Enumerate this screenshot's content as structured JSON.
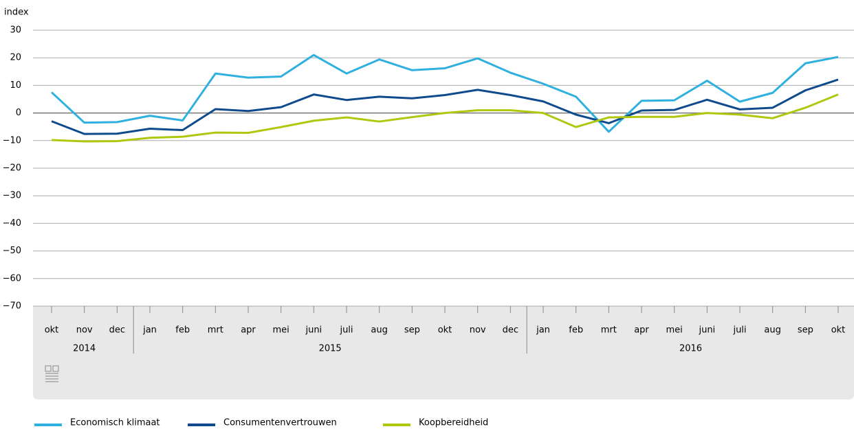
{
  "chart_data": {
    "type": "line",
    "y_label": "index",
    "categories": [
      "okt",
      "nov",
      "dec",
      "jan",
      "feb",
      "mrt",
      "apr",
      "mei",
      "juni",
      "juli",
      "aug",
      "sep",
      "okt",
      "nov",
      "dec",
      "jan",
      "feb",
      "mrt",
      "apr",
      "mei",
      "juni",
      "juli",
      "aug",
      "sep",
      "okt"
    ],
    "category_years": [
      "2014",
      "2014",
      "2014",
      "2015",
      "2015",
      "2015",
      "2015",
      "2015",
      "2015",
      "2015",
      "2015",
      "2015",
      "2015",
      "2015",
      "2015",
      "2016",
      "2016",
      "2016",
      "2016",
      "2016",
      "2016",
      "2016",
      "2016",
      "2016",
      "2016"
    ],
    "series": [
      {
        "name": "Economisch klimaat",
        "color": "#2fb0de",
        "values": [
          7.5,
          -3.5,
          -3.3,
          -1,
          -2.7,
          14.3,
          12.8,
          13.2,
          21,
          14.3,
          19.4,
          15.5,
          16.2,
          19.8,
          14.6,
          10.6,
          5.9,
          -6.8,
          4.4,
          4.6,
          11.7,
          4.1,
          7.3,
          18,
          20.3
        ]
      },
      {
        "name": "Consumentenvertrouwen",
        "color": "#0f4a8d",
        "values": [
          -3,
          -7.6,
          -7.5,
          -5.7,
          -6.2,
          1.4,
          0.7,
          2.1,
          6.7,
          4.7,
          5.9,
          5.3,
          6.5,
          8.4,
          6.5,
          4.2,
          -0.6,
          -3.7,
          0.9,
          1.1,
          4.8,
          1.3,
          1.9,
          8.2,
          12.1
        ]
      },
      {
        "name": "Koopbereidheid",
        "color": "#afc80f",
        "values": [
          -9.8,
          -10.3,
          -10.2,
          -9,
          -8.6,
          -7.1,
          -7.2,
          -5.1,
          -2.8,
          -1.6,
          -3.1,
          -1.5,
          0,
          1,
          1,
          0,
          -5.1,
          -1.6,
          -1.4,
          -1.4,
          0,
          -0.6,
          -1.9,
          1.9,
          6.7
        ]
      }
    ],
    "ylim": [
      -70,
      30
    ],
    "yticks": [
      {
        "value": -70,
        "label": "−70"
      },
      {
        "value": -60,
        "label": "−60"
      },
      {
        "value": -50,
        "label": "−50"
      },
      {
        "value": -40,
        "label": "−40"
      },
      {
        "value": -30,
        "label": "−30"
      },
      {
        "value": -20,
        "label": "−20"
      },
      {
        "value": -10,
        "label": "−10"
      },
      0,
      10,
      20,
      30
    ],
    "grid": true
  }
}
